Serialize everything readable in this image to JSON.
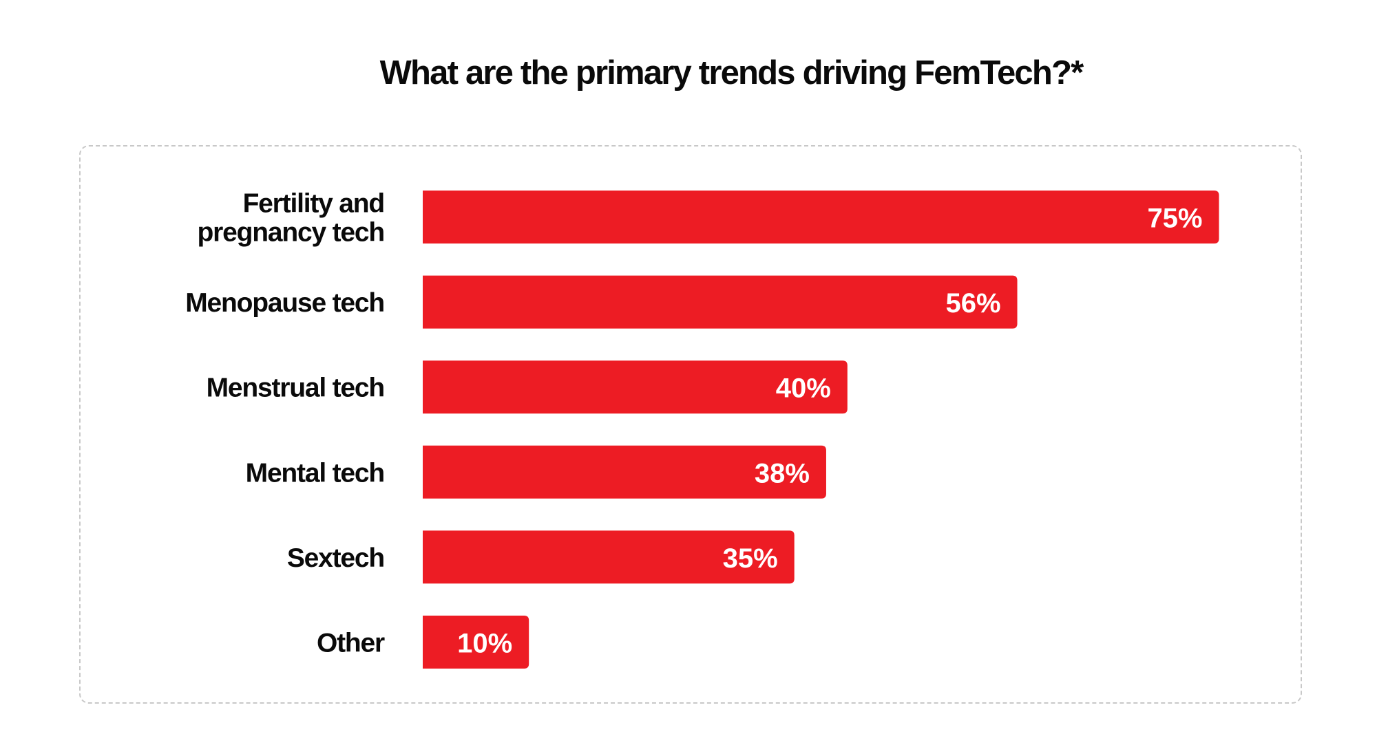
{
  "chart_data": {
    "type": "bar",
    "orientation": "horizontal",
    "title": "What are the primary trends driving FemTech?*",
    "categories": [
      [
        "Fertility and",
        "pregnancy tech"
      ],
      [
        "Menopause tech"
      ],
      [
        "Menstrual tech"
      ],
      [
        "Mental tech"
      ],
      [
        "Sextech"
      ],
      [
        "Other"
      ]
    ],
    "values": [
      75,
      56,
      40,
      38,
      35,
      10
    ],
    "value_labels": [
      "75%",
      "56%",
      "40%",
      "38%",
      "35%",
      "10%"
    ],
    "unit": "%",
    "xlabel": "",
    "ylabel": "",
    "xlim": [
      0,
      100
    ],
    "grid": false,
    "legend": "none",
    "bar_color": "#ed1c24",
    "label_color": "#0a0a0a",
    "value_label_color": "#ffffff"
  }
}
